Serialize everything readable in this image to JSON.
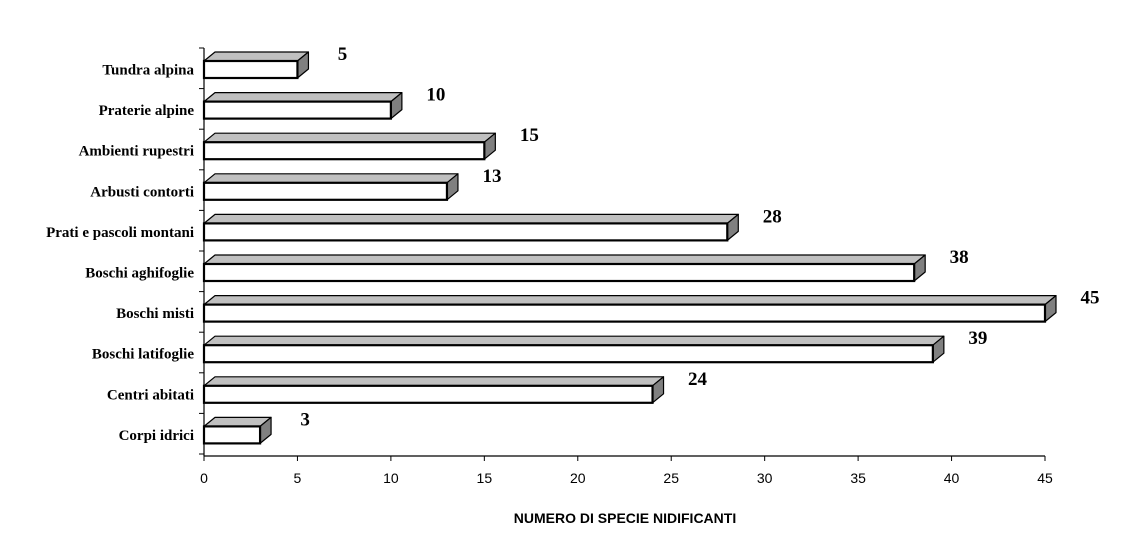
{
  "chart_data": {
    "type": "bar",
    "orientation": "horizontal",
    "categories": [
      "Tundra alpina",
      "Praterie alpine",
      "Ambienti rupestri",
      "Arbusti contorti",
      "Prati e pascoli montani",
      "Boschi aghifoglie",
      "Boschi misti",
      "Boschi latifoglie",
      "Centri abitati",
      "Corpi idrici"
    ],
    "values": [
      5,
      10,
      15,
      13,
      28,
      38,
      45,
      39,
      24,
      3
    ],
    "xlabel": "NUMERO DI SPECIE NIDIFICANTI",
    "ylabel": "",
    "xlim": [
      0,
      45
    ],
    "xticks": [
      0,
      5,
      10,
      15,
      20,
      25,
      30,
      35,
      40,
      45
    ],
    "grid": false,
    "legend": "none",
    "style": "3d-bars",
    "colors": {
      "bar_face": "#ffffff",
      "bar_top": "#c0c0c0",
      "bar_side": "#808080",
      "outline": "#000000"
    }
  }
}
